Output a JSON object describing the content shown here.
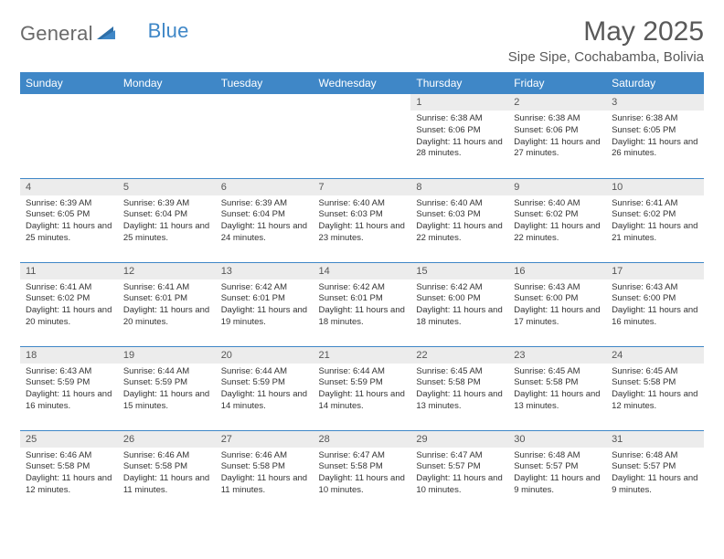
{
  "logo": {
    "text_general": "General",
    "text_blue": "Blue"
  },
  "header": {
    "month_title": "May 2025",
    "location": "Sipe Sipe, Cochabamba, Bolivia"
  },
  "colors": {
    "header_bg": "#3f87c7",
    "header_text": "#ffffff",
    "daynum_bg": "#ececec",
    "row_border": "#3f87c7",
    "logo_gray": "#6a6a6a",
    "logo_blue": "#3f87c7",
    "title_color": "#595959"
  },
  "weekdays": [
    "Sunday",
    "Monday",
    "Tuesday",
    "Wednesday",
    "Thursday",
    "Friday",
    "Saturday"
  ],
  "weeks": [
    [
      {
        "empty": true
      },
      {
        "empty": true
      },
      {
        "empty": true
      },
      {
        "empty": true
      },
      {
        "n": "1",
        "sunrise": "6:38 AM",
        "sunset": "6:06 PM",
        "daylight": "11 hours and 28 minutes."
      },
      {
        "n": "2",
        "sunrise": "6:38 AM",
        "sunset": "6:06 PM",
        "daylight": "11 hours and 27 minutes."
      },
      {
        "n": "3",
        "sunrise": "6:38 AM",
        "sunset": "6:05 PM",
        "daylight": "11 hours and 26 minutes."
      }
    ],
    [
      {
        "n": "4",
        "sunrise": "6:39 AM",
        "sunset": "6:05 PM",
        "daylight": "11 hours and 25 minutes."
      },
      {
        "n": "5",
        "sunrise": "6:39 AM",
        "sunset": "6:04 PM",
        "daylight": "11 hours and 25 minutes."
      },
      {
        "n": "6",
        "sunrise": "6:39 AM",
        "sunset": "6:04 PM",
        "daylight": "11 hours and 24 minutes."
      },
      {
        "n": "7",
        "sunrise": "6:40 AM",
        "sunset": "6:03 PM",
        "daylight": "11 hours and 23 minutes."
      },
      {
        "n": "8",
        "sunrise": "6:40 AM",
        "sunset": "6:03 PM",
        "daylight": "11 hours and 22 minutes."
      },
      {
        "n": "9",
        "sunrise": "6:40 AM",
        "sunset": "6:02 PM",
        "daylight": "11 hours and 22 minutes."
      },
      {
        "n": "10",
        "sunrise": "6:41 AM",
        "sunset": "6:02 PM",
        "daylight": "11 hours and 21 minutes."
      }
    ],
    [
      {
        "n": "11",
        "sunrise": "6:41 AM",
        "sunset": "6:02 PM",
        "daylight": "11 hours and 20 minutes."
      },
      {
        "n": "12",
        "sunrise": "6:41 AM",
        "sunset": "6:01 PM",
        "daylight": "11 hours and 20 minutes."
      },
      {
        "n": "13",
        "sunrise": "6:42 AM",
        "sunset": "6:01 PM",
        "daylight": "11 hours and 19 minutes."
      },
      {
        "n": "14",
        "sunrise": "6:42 AM",
        "sunset": "6:01 PM",
        "daylight": "11 hours and 18 minutes."
      },
      {
        "n": "15",
        "sunrise": "6:42 AM",
        "sunset": "6:00 PM",
        "daylight": "11 hours and 18 minutes."
      },
      {
        "n": "16",
        "sunrise": "6:43 AM",
        "sunset": "6:00 PM",
        "daylight": "11 hours and 17 minutes."
      },
      {
        "n": "17",
        "sunrise": "6:43 AM",
        "sunset": "6:00 PM",
        "daylight": "11 hours and 16 minutes."
      }
    ],
    [
      {
        "n": "18",
        "sunrise": "6:43 AM",
        "sunset": "5:59 PM",
        "daylight": "11 hours and 16 minutes."
      },
      {
        "n": "19",
        "sunrise": "6:44 AM",
        "sunset": "5:59 PM",
        "daylight": "11 hours and 15 minutes."
      },
      {
        "n": "20",
        "sunrise": "6:44 AM",
        "sunset": "5:59 PM",
        "daylight": "11 hours and 14 minutes."
      },
      {
        "n": "21",
        "sunrise": "6:44 AM",
        "sunset": "5:59 PM",
        "daylight": "11 hours and 14 minutes."
      },
      {
        "n": "22",
        "sunrise": "6:45 AM",
        "sunset": "5:58 PM",
        "daylight": "11 hours and 13 minutes."
      },
      {
        "n": "23",
        "sunrise": "6:45 AM",
        "sunset": "5:58 PM",
        "daylight": "11 hours and 13 minutes."
      },
      {
        "n": "24",
        "sunrise": "6:45 AM",
        "sunset": "5:58 PM",
        "daylight": "11 hours and 12 minutes."
      }
    ],
    [
      {
        "n": "25",
        "sunrise": "6:46 AM",
        "sunset": "5:58 PM",
        "daylight": "11 hours and 12 minutes."
      },
      {
        "n": "26",
        "sunrise": "6:46 AM",
        "sunset": "5:58 PM",
        "daylight": "11 hours and 11 minutes."
      },
      {
        "n": "27",
        "sunrise": "6:46 AM",
        "sunset": "5:58 PM",
        "daylight": "11 hours and 11 minutes."
      },
      {
        "n": "28",
        "sunrise": "6:47 AM",
        "sunset": "5:58 PM",
        "daylight": "11 hours and 10 minutes."
      },
      {
        "n": "29",
        "sunrise": "6:47 AM",
        "sunset": "5:57 PM",
        "daylight": "11 hours and 10 minutes."
      },
      {
        "n": "30",
        "sunrise": "6:48 AM",
        "sunset": "5:57 PM",
        "daylight": "11 hours and 9 minutes."
      },
      {
        "n": "31",
        "sunrise": "6:48 AM",
        "sunset": "5:57 PM",
        "daylight": "11 hours and 9 minutes."
      }
    ]
  ]
}
